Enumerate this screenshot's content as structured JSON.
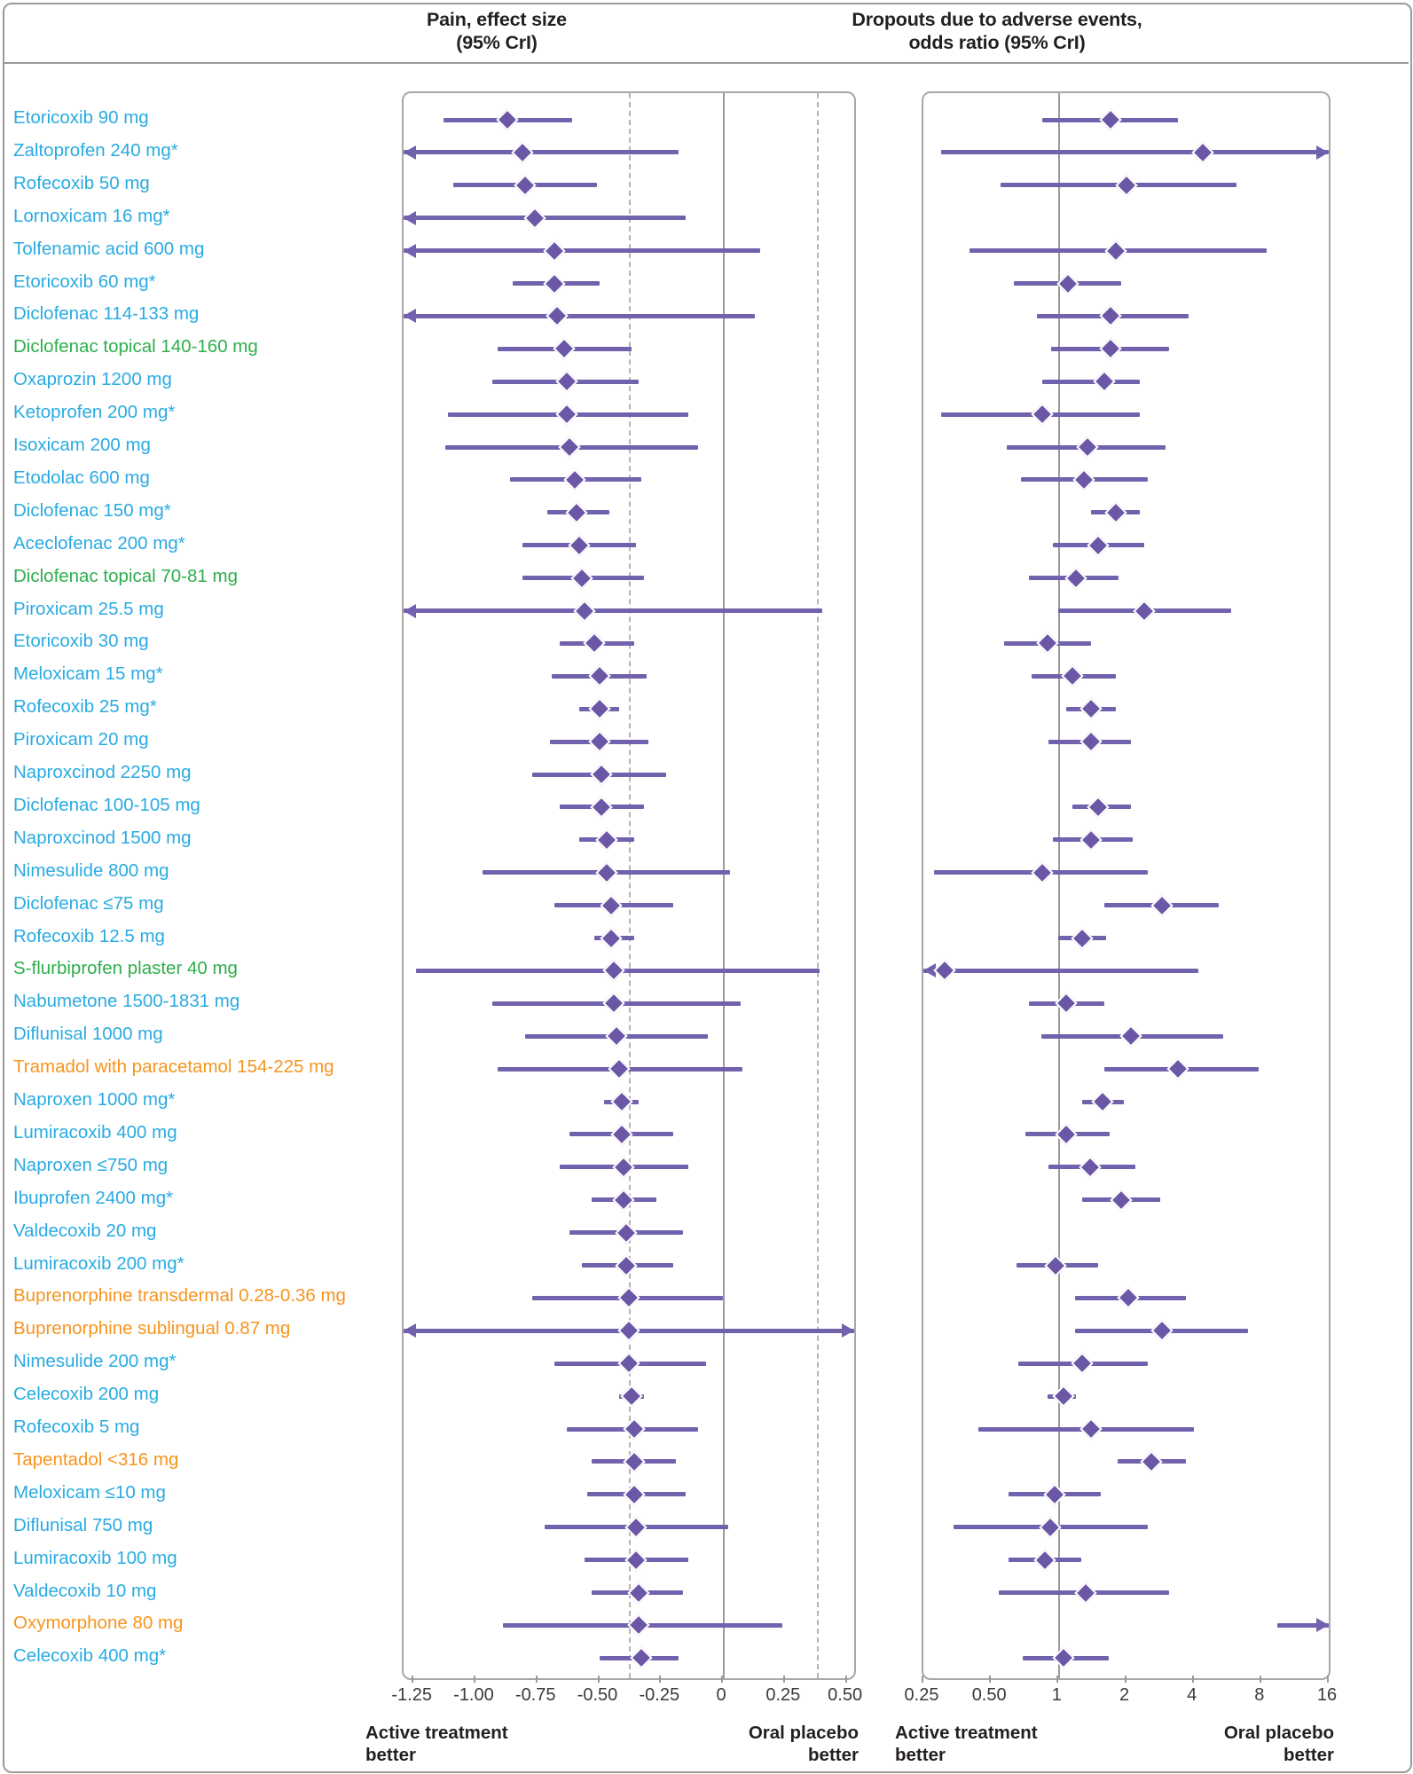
{
  "header": {
    "left_title_line1": "Pain, effect size",
    "left_title_line2": "(95% CrI)",
    "right_title_line1": "Dropouts due to adverse events,",
    "right_title_line2": "odds ratio (95% CrI)"
  },
  "colors": {
    "blue": "#29abe2",
    "green": "#2eaf4d",
    "orange": "#f7941d",
    "line_purple": "#7262ad",
    "diamond_purple": "#6b57a6",
    "grid_grey": "#9b9b9b"
  },
  "axes": {
    "pain": {
      "min": -1.29,
      "max": 0.53,
      "ticks": [
        -1.25,
        -1.0,
        -0.75,
        -0.5,
        -0.25,
        0,
        0.25,
        0.5
      ],
      "tick_labels": [
        "-1.25",
        "-1.00",
        "-0.75",
        "-0.50",
        "-0.25",
        "0",
        "0.25",
        "0.50"
      ],
      "ref_line": 0,
      "dashed_lines": [
        -0.38,
        0.38
      ],
      "better_left_line1": "Active treatment",
      "better_left_line2": "better",
      "better_right_line1": "Oral placebo",
      "better_right_line2": "better"
    },
    "or": {
      "min": 0.25,
      "max": 16,
      "ticks": [
        0.25,
        0.5,
        1,
        2,
        4,
        8,
        16
      ],
      "tick_labels": [
        "0.25",
        "0.50",
        "1",
        "2",
        "4",
        "8",
        "16"
      ],
      "ref_line": 1,
      "dashed_lines": [],
      "better_left_line1": "Active treatment",
      "better_left_line2": "better",
      "better_right_line1": "Oral placebo",
      "better_right_line2": "better"
    }
  },
  "chart_data": {
    "type": "forest-plot",
    "panels": [
      "Pain, effect size (95% CrI)",
      "Dropouts due to adverse events, odds ratio (95% CrI)"
    ],
    "rows": [
      {
        "name": "Etoricoxib 90 mg",
        "group": "blue",
        "pain": {
          "est": -0.87,
          "lo": -1.13,
          "hi": -0.61
        },
        "dropout": {
          "est": 1.7,
          "lo": 0.85,
          "hi": 3.4
        }
      },
      {
        "name": "Zaltoprofen 240 mg*",
        "group": "blue",
        "pain": {
          "est": -0.81,
          "lo": -1.29,
          "hi": -0.18,
          "arrow_lo": true
        },
        "dropout": {
          "est": 4.4,
          "lo": 0.3,
          "hi": 16,
          "arrow_hi": true
        }
      },
      {
        "name": "Rofecoxib 50 mg",
        "group": "blue",
        "pain": {
          "est": -0.8,
          "lo": -1.09,
          "hi": -0.51
        },
        "dropout": {
          "est": 2.0,
          "lo": 0.55,
          "hi": 6.2
        }
      },
      {
        "name": "Lornoxicam 16 mg*",
        "group": "blue",
        "pain": {
          "est": -0.76,
          "lo": -1.29,
          "hi": -0.15,
          "arrow_lo": true
        },
        "dropout": null
      },
      {
        "name": "Tolfenamic acid 600 mg",
        "group": "blue",
        "pain": {
          "est": -0.68,
          "lo": -1.29,
          "hi": 0.15,
          "arrow_lo": true
        },
        "dropout": {
          "est": 1.8,
          "lo": 0.4,
          "hi": 8.5
        }
      },
      {
        "name": "Etoricoxib 60 mg*",
        "group": "blue",
        "pain": {
          "est": -0.68,
          "lo": -0.85,
          "hi": -0.5
        },
        "dropout": {
          "est": 1.1,
          "lo": 0.63,
          "hi": 1.9
        }
      },
      {
        "name": "Diclofenac 114-133 mg",
        "group": "blue",
        "pain": {
          "est": -0.67,
          "lo": -1.29,
          "hi": 0.13,
          "arrow_lo": true
        },
        "dropout": {
          "est": 1.7,
          "lo": 0.8,
          "hi": 3.8
        }
      },
      {
        "name": "Diclofenac topical 140-160 mg",
        "group": "green",
        "pain": {
          "est": -0.64,
          "lo": -0.91,
          "hi": -0.37
        },
        "dropout": {
          "est": 1.7,
          "lo": 0.93,
          "hi": 3.1
        }
      },
      {
        "name": "Oxaprozin 1200 mg",
        "group": "blue",
        "pain": {
          "est": -0.63,
          "lo": -0.93,
          "hi": -0.34
        },
        "dropout": {
          "est": 1.6,
          "lo": 0.85,
          "hi": 2.3
        }
      },
      {
        "name": "Ketoprofen 200 mg*",
        "group": "blue",
        "pain": {
          "est": -0.63,
          "lo": -1.11,
          "hi": -0.14
        },
        "dropout": {
          "est": 0.85,
          "lo": 0.3,
          "hi": 2.3
        }
      },
      {
        "name": "Isoxicam 200 mg",
        "group": "blue",
        "pain": {
          "est": -0.62,
          "lo": -1.12,
          "hi": -0.1
        },
        "dropout": {
          "est": 1.35,
          "lo": 0.59,
          "hi": 3.0
        }
      },
      {
        "name": "Etodolac 600 mg",
        "group": "blue",
        "pain": {
          "est": -0.6,
          "lo": -0.86,
          "hi": -0.33
        },
        "dropout": {
          "est": 1.3,
          "lo": 0.68,
          "hi": 2.5
        }
      },
      {
        "name": "Diclofenac 150 mg*",
        "group": "blue",
        "pain": {
          "est": -0.59,
          "lo": -0.71,
          "hi": -0.46
        },
        "dropout": {
          "est": 1.8,
          "lo": 1.4,
          "hi": 2.3
        }
      },
      {
        "name": "Aceclofenac 200 mg*",
        "group": "blue",
        "pain": {
          "est": -0.58,
          "lo": -0.81,
          "hi": -0.35
        },
        "dropout": {
          "est": 1.5,
          "lo": 0.94,
          "hi": 2.4
        }
      },
      {
        "name": "Diclofenac topical 70-81 mg",
        "group": "green",
        "pain": {
          "est": -0.57,
          "lo": -0.81,
          "hi": -0.32
        },
        "dropout": {
          "est": 1.2,
          "lo": 0.74,
          "hi": 1.85
        }
      },
      {
        "name": "Piroxicam 25.5 mg",
        "group": "blue",
        "pain": {
          "est": -0.56,
          "lo": -1.29,
          "hi": 0.4,
          "arrow_lo": true
        },
        "dropout": {
          "est": 2.4,
          "lo": 1.0,
          "hi": 5.9
        }
      },
      {
        "name": "Etoricoxib 30 mg",
        "group": "blue",
        "pain": {
          "est": -0.52,
          "lo": -0.66,
          "hi": -0.36
        },
        "dropout": {
          "est": 0.89,
          "lo": 0.57,
          "hi": 1.4
        }
      },
      {
        "name": "Meloxicam 15 mg*",
        "group": "blue",
        "pain": {
          "est": -0.5,
          "lo": -0.69,
          "hi": -0.31
        },
        "dropout": {
          "est": 1.15,
          "lo": 0.76,
          "hi": 1.8
        }
      },
      {
        "name": "Rofecoxib 25 mg*",
        "group": "blue",
        "pain": {
          "est": -0.5,
          "lo": -0.58,
          "hi": -0.42
        },
        "dropout": {
          "est": 1.4,
          "lo": 1.08,
          "hi": 1.8
        }
      },
      {
        "name": "Piroxicam 20 mg",
        "group": "blue",
        "pain": {
          "est": -0.5,
          "lo": -0.7,
          "hi": -0.3
        },
        "dropout": {
          "est": 1.4,
          "lo": 0.9,
          "hi": 2.1
        }
      },
      {
        "name": "Naproxcinod 2250 mg",
        "group": "blue",
        "pain": {
          "est": -0.49,
          "lo": -0.77,
          "hi": -0.23
        },
        "dropout": null
      },
      {
        "name": "Diclofenac 100-105 mg",
        "group": "blue",
        "pain": {
          "est": -0.49,
          "lo": -0.66,
          "hi": -0.32
        },
        "dropout": {
          "est": 1.5,
          "lo": 1.15,
          "hi": 2.1
        }
      },
      {
        "name": "Naproxcinod 1500 mg",
        "group": "blue",
        "pain": {
          "est": -0.47,
          "lo": -0.58,
          "hi": -0.36
        },
        "dropout": {
          "est": 1.4,
          "lo": 0.94,
          "hi": 2.15
        }
      },
      {
        "name": "Nimesulide 800 mg",
        "group": "blue",
        "pain": {
          "est": -0.47,
          "lo": -0.97,
          "hi": 0.03
        },
        "dropout": {
          "est": 0.85,
          "lo": 0.28,
          "hi": 2.5
        }
      },
      {
        "name": "Diclofenac ≤75 mg",
        "group": "blue",
        "pain": {
          "est": -0.45,
          "lo": -0.68,
          "hi": -0.2
        },
        "dropout": {
          "est": 2.9,
          "lo": 1.6,
          "hi": 5.2
        }
      },
      {
        "name": "Rofecoxib 12.5 mg",
        "group": "blue",
        "pain": {
          "est": -0.45,
          "lo": -0.52,
          "hi": -0.36
        },
        "dropout": {
          "est": 1.27,
          "lo": 1.0,
          "hi": 1.63
        }
      },
      {
        "name": "S-flurbiprofen plaster 40 mg",
        "group": "green",
        "pain": {
          "est": -0.44,
          "lo": -1.24,
          "hi": 0.39
        },
        "dropout": {
          "est": 0.31,
          "lo": 0.25,
          "hi": 4.2,
          "arrow_lo": true
        }
      },
      {
        "name": "Nabumetone 1500-1831 mg",
        "group": "blue",
        "pain": {
          "est": -0.44,
          "lo": -0.93,
          "hi": 0.07
        },
        "dropout": {
          "est": 1.08,
          "lo": 0.74,
          "hi": 1.6
        }
      },
      {
        "name": "Diflunisal 1000 mg",
        "group": "blue",
        "pain": {
          "est": -0.43,
          "lo": -0.8,
          "hi": -0.06
        },
        "dropout": {
          "est": 2.1,
          "lo": 0.84,
          "hi": 5.4
        }
      },
      {
        "name": "Tramadol with paracetamol 154-225 mg",
        "group": "orange",
        "pain": {
          "est": -0.42,
          "lo": -0.91,
          "hi": 0.08
        },
        "dropout": {
          "est": 3.4,
          "lo": 1.6,
          "hi": 7.8
        }
      },
      {
        "name": "Naproxen 1000 mg*",
        "group": "blue",
        "pain": {
          "est": -0.41,
          "lo": -0.48,
          "hi": -0.34
        },
        "dropout": {
          "est": 1.57,
          "lo": 1.28,
          "hi": 1.95
        }
      },
      {
        "name": "Lumiracoxib 400 mg",
        "group": "blue",
        "pain": {
          "est": -0.41,
          "lo": -0.62,
          "hi": -0.2
        },
        "dropout": {
          "est": 1.08,
          "lo": 0.71,
          "hi": 1.69
        }
      },
      {
        "name": "Naproxen ≤750 mg",
        "group": "blue",
        "pain": {
          "est": -0.4,
          "lo": -0.66,
          "hi": -0.14
        },
        "dropout": {
          "est": 1.38,
          "lo": 0.9,
          "hi": 2.2
        }
      },
      {
        "name": "Ibuprofen 2400 mg*",
        "group": "blue",
        "pain": {
          "est": -0.4,
          "lo": -0.53,
          "hi": -0.27
        },
        "dropout": {
          "est": 1.9,
          "lo": 1.27,
          "hi": 2.83
        }
      },
      {
        "name": "Valdecoxib 20 mg",
        "group": "blue",
        "pain": {
          "est": -0.39,
          "lo": -0.62,
          "hi": -0.16
        },
        "dropout": null
      },
      {
        "name": "Lumiracoxib 200 mg*",
        "group": "blue",
        "pain": {
          "est": -0.39,
          "lo": -0.57,
          "hi": -0.2
        },
        "dropout": {
          "est": 0.97,
          "lo": 0.65,
          "hi": 1.5
        }
      },
      {
        "name": "Buprenorphine transdermal 0.28-0.36 mg",
        "group": "orange",
        "pain": {
          "est": -0.38,
          "lo": -0.77,
          "hi": 0.0
        },
        "dropout": {
          "est": 2.05,
          "lo": 1.18,
          "hi": 3.7
        }
      },
      {
        "name": "Buprenorphine sublingual 0.87 mg",
        "group": "orange",
        "pain": {
          "est": -0.38,
          "lo": -1.29,
          "hi": 0.53,
          "arrow_lo": true,
          "arrow_hi": true
        },
        "dropout": {
          "est": 2.9,
          "lo": 1.18,
          "hi": 7.0
        }
      },
      {
        "name": "Nimesulide 200 mg*",
        "group": "blue",
        "pain": {
          "est": -0.38,
          "lo": -0.68,
          "hi": -0.07
        },
        "dropout": {
          "est": 1.27,
          "lo": 0.66,
          "hi": 2.5
        }
      },
      {
        "name": "Celecoxib 200 mg",
        "group": "blue",
        "pain": {
          "est": -0.37,
          "lo": -0.42,
          "hi": -0.32
        },
        "dropout": {
          "est": 1.05,
          "lo": 0.89,
          "hi": 1.2
        }
      },
      {
        "name": "Rofecoxib 5 mg",
        "group": "blue",
        "pain": {
          "est": -0.36,
          "lo": -0.63,
          "hi": -0.1
        },
        "dropout": {
          "est": 1.4,
          "lo": 0.44,
          "hi": 4.0
        }
      },
      {
        "name": "Tapentadol <316 mg",
        "group": "orange",
        "pain": {
          "est": -0.36,
          "lo": -0.53,
          "hi": -0.19
        },
        "dropout": {
          "est": 2.6,
          "lo": 1.83,
          "hi": 3.7
        }
      },
      {
        "name": "Meloxicam ≤10 mg",
        "group": "blue",
        "pain": {
          "est": -0.36,
          "lo": -0.55,
          "hi": -0.15
        },
        "dropout": {
          "est": 0.96,
          "lo": 0.6,
          "hi": 1.55
        }
      },
      {
        "name": "Diflunisal 750 mg",
        "group": "blue",
        "pain": {
          "est": -0.35,
          "lo": -0.72,
          "hi": 0.02
        },
        "dropout": {
          "est": 0.92,
          "lo": 0.34,
          "hi": 2.5
        }
      },
      {
        "name": "Lumiracoxib 100 mg",
        "group": "blue",
        "pain": {
          "est": -0.35,
          "lo": -0.56,
          "hi": -0.14
        },
        "dropout": {
          "est": 0.87,
          "lo": 0.6,
          "hi": 1.26
        }
      },
      {
        "name": "Valdecoxib 10 mg",
        "group": "blue",
        "pain": {
          "est": -0.34,
          "lo": -0.53,
          "hi": -0.16
        },
        "dropout": {
          "est": 1.32,
          "lo": 0.54,
          "hi": 3.1
        }
      },
      {
        "name": "Oxymorphone 80 mg",
        "group": "orange",
        "pain": {
          "est": -0.34,
          "lo": -0.89,
          "hi": 0.24
        },
        "dropout": {
          "est": null,
          "lo": 9.4,
          "hi": 16,
          "arrow_hi": true
        }
      },
      {
        "name": "Celecoxib 400 mg*",
        "group": "blue",
        "pain": {
          "est": -0.33,
          "lo": -0.5,
          "hi": -0.18
        },
        "dropout": {
          "est": 1.05,
          "lo": 0.69,
          "hi": 1.68
        }
      }
    ]
  }
}
